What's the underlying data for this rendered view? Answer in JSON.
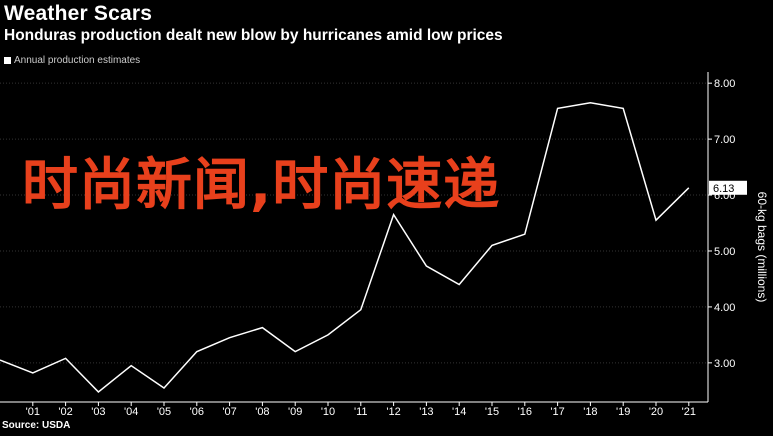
{
  "header": {
    "title": "Weather Scars",
    "subtitle": "Honduras production dealt new blow by hurricanes amid low prices",
    "legend_label": "Annual production estimates"
  },
  "footer": {
    "source": "Source: USDA"
  },
  "watermark": {
    "text": "时尚新闻,时尚速递"
  },
  "colors": {
    "background": "#000000",
    "line": "#ffffff",
    "grid": "#333333",
    "last_value_badge_bg": "#ffffff",
    "overlay_text": "#e8401c"
  },
  "chart_data": {
    "type": "line",
    "title": "Weather Scars",
    "subtitle": "Honduras production dealt new blow by hurricanes amid low prices",
    "ylabel": "60-kg bags (millions)",
    "xlabel": "",
    "ylim": [
      2.3,
      8.2
    ],
    "y_ticks": [
      "3.00",
      "4.00",
      "5.00",
      "6.00",
      "7.00",
      "8.00"
    ],
    "y_tick_values": [
      3,
      4,
      5,
      6,
      7,
      8
    ],
    "x_ticks": [
      "'01",
      "'02",
      "'03",
      "'04",
      "'05",
      "'06",
      "'07",
      "'08",
      "'09",
      "'10",
      "'11",
      "'12",
      "'13",
      "'14",
      "'15",
      "'16",
      "'17",
      "'18",
      "'19",
      "'20",
      "'21"
    ],
    "grid": true,
    "legend_position": "top-left",
    "last_value_label": "6.13",
    "series": [
      {
        "name": "Annual production estimates",
        "x": [
          2000,
          2001,
          2002,
          2003,
          2004,
          2005,
          2006,
          2007,
          2008,
          2009,
          2010,
          2011,
          2012,
          2013,
          2014,
          2015,
          2016,
          2017,
          2018,
          2019,
          2020,
          2021
        ],
        "values": [
          3.05,
          2.82,
          3.08,
          2.48,
          2.95,
          2.55,
          3.2,
          3.45,
          3.63,
          3.2,
          3.5,
          3.95,
          5.65,
          4.73,
          4.4,
          5.1,
          5.3,
          7.55,
          7.65,
          7.55,
          5.55,
          6.13
        ]
      }
    ]
  }
}
